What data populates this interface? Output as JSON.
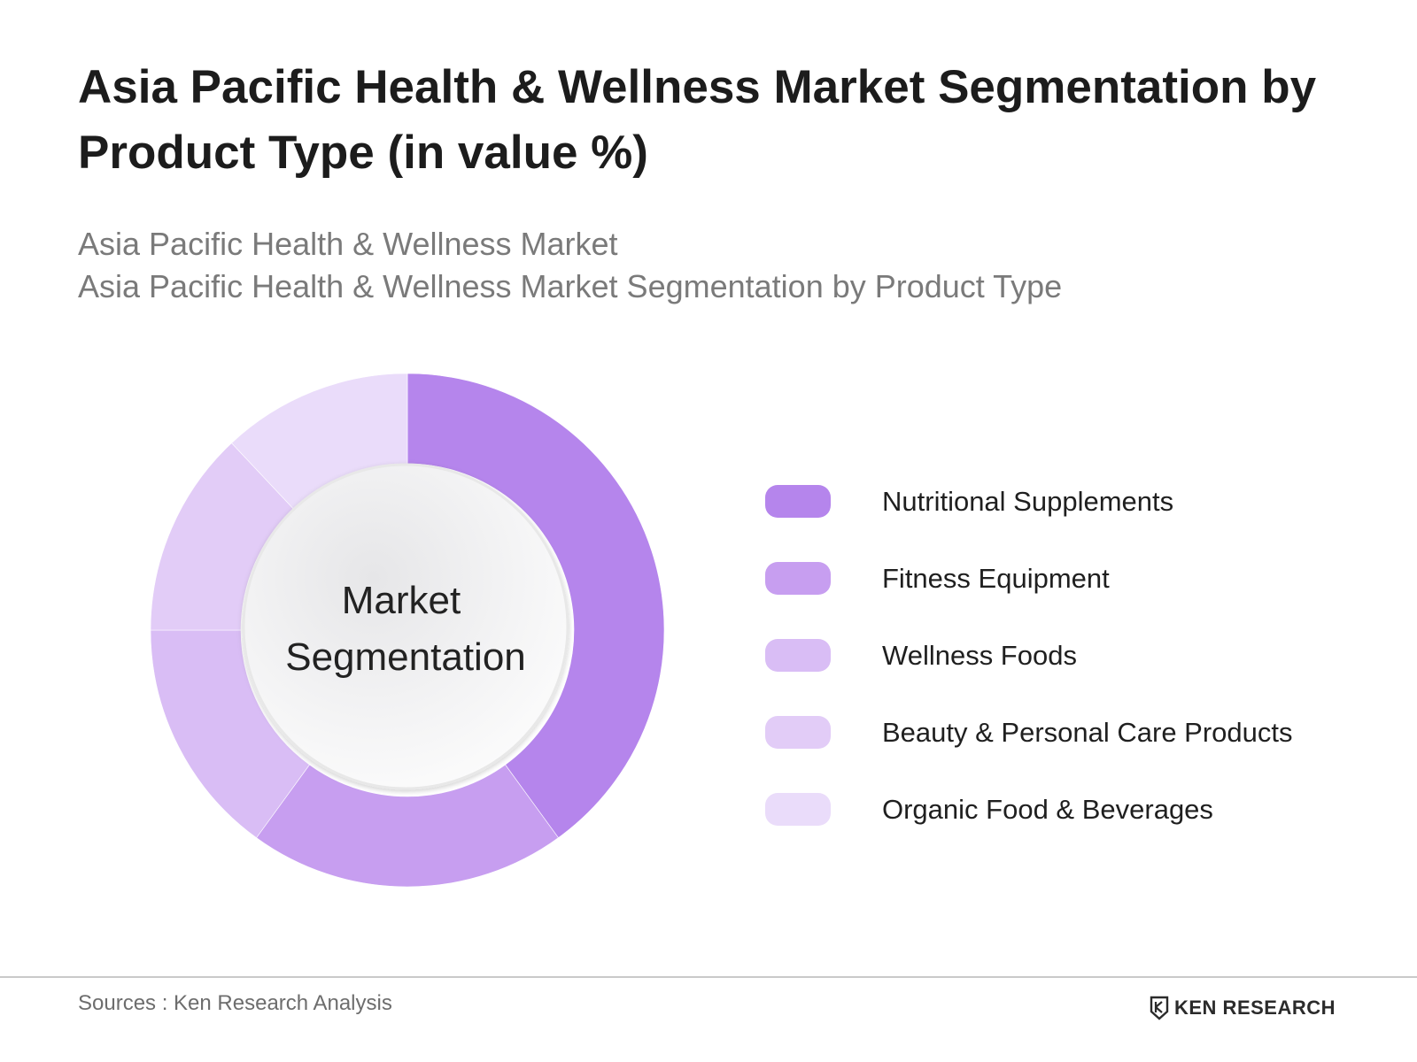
{
  "header": {
    "title": "Asia Pacific Health & Wellness Market Segmentation by Product Type (in value %)",
    "subtitle_line1": "Asia Pacific Health & Wellness Market",
    "subtitle_line2": "Asia Pacific Health & Wellness Market Segmentation by Product Type"
  },
  "chart_data": {
    "type": "pie",
    "donut": true,
    "center_label_line1": "Market",
    "center_label_line2": "Segmentation",
    "categories": [
      "Nutritional Supplements",
      "Fitness Equipment",
      "Wellness Foods",
      "Beauty & Personal Care Products",
      "Organic Food & Beverages"
    ],
    "values": [
      40,
      20,
      15,
      13,
      12
    ],
    "colors": [
      "#b585ec",
      "#c79ef0",
      "#d9bdf5",
      "#e2ccf7",
      "#eadcfa"
    ],
    "legend_position": "right"
  },
  "footer": {
    "source": "Sources : Ken Research Analysis",
    "logo_text": "KEN RESEARCH",
    "logo_icon": "ken-research-logo-icon"
  }
}
